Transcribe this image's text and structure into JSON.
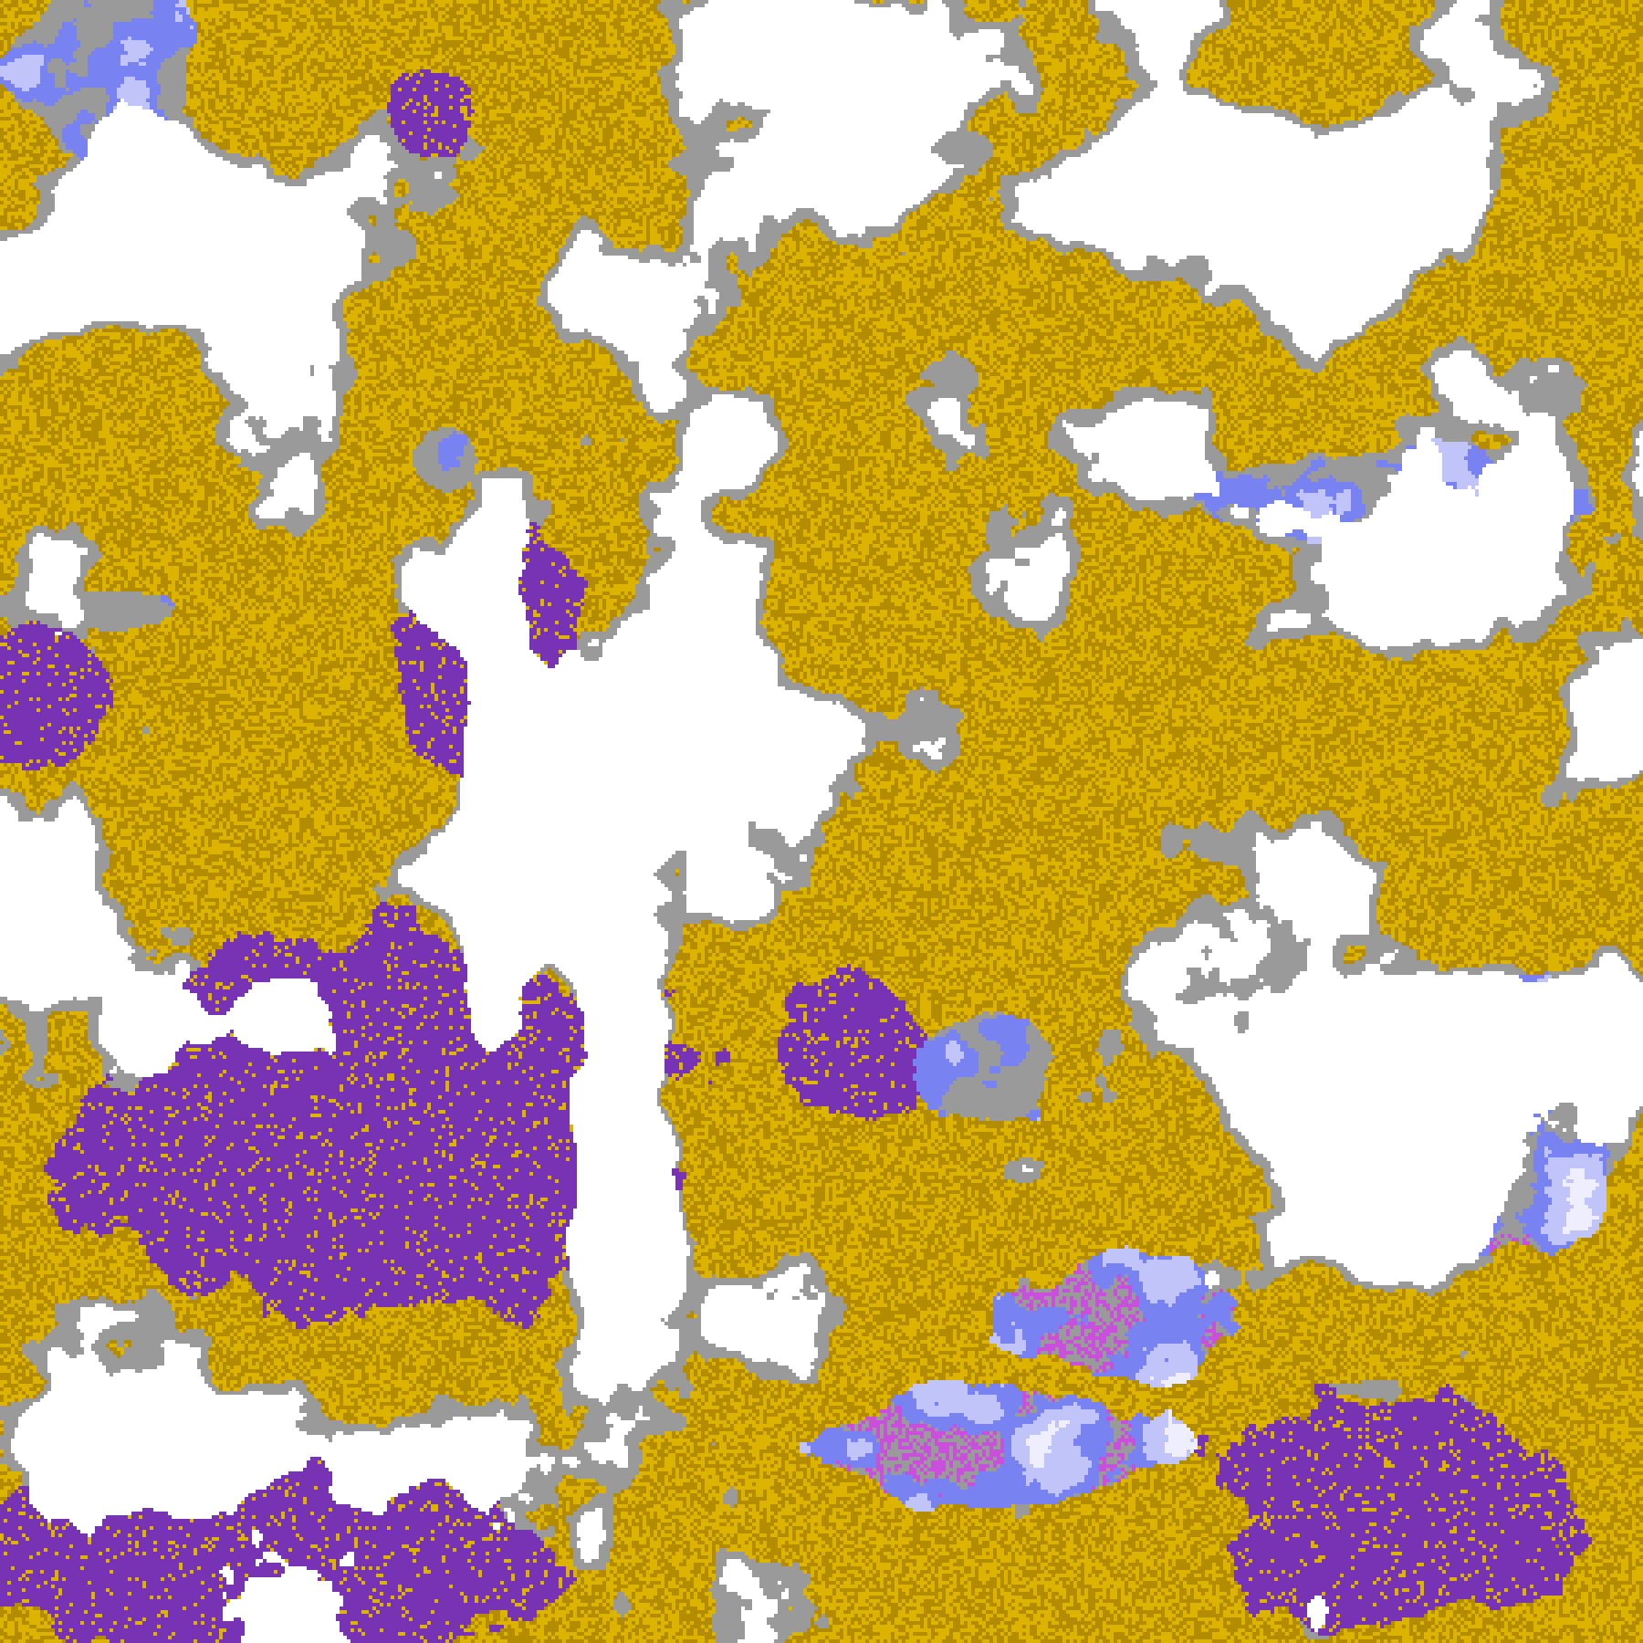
{
  "map": {
    "title": "",
    "palette": {
      "clear": "#ffffff",
      "gold_light": "#dcb400",
      "gold_dark": "#b48c00",
      "gray": "#9a9a9a",
      "purple": "#7832b4",
      "magenta": "#c850dc",
      "periwinkle": "#7882f0",
      "lavender": "#c0c4f8",
      "pale": "#eeeeff"
    }
  }
}
